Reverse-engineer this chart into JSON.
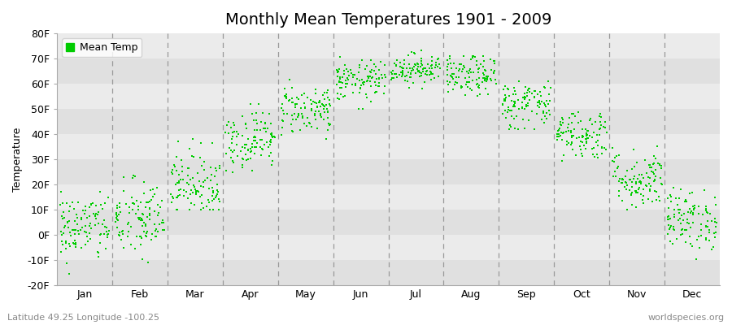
{
  "title": "Monthly Mean Temperatures 1901 - 2009",
  "ylabel": "Temperature",
  "xlabel_bottom_left": "Latitude 49.25 Longitude -100.25",
  "xlabel_bottom_right": "worldspecies.org",
  "legend_label": "Mean Temp",
  "dot_color": "#00CC00",
  "dot_size": 3,
  "ylim": [
    -20,
    80
  ],
  "yticks": [
    -20,
    -10,
    0,
    10,
    20,
    30,
    40,
    50,
    60,
    70,
    80
  ],
  "ytick_labels": [
    "-20F",
    "-10F",
    "0F",
    "10F",
    "20F",
    "30F",
    "40F",
    "50F",
    "60F",
    "70F",
    "80F"
  ],
  "months": [
    "Jan",
    "Feb",
    "Mar",
    "Apr",
    "May",
    "Jun",
    "Jul",
    "Aug",
    "Sep",
    "Oct",
    "Nov",
    "Dec"
  ],
  "bg_color": "#ffffff",
  "plot_bg_color": "#ebebeb",
  "band_colors": [
    "#e0e0e0",
    "#ebebeb"
  ],
  "title_fontsize": 14,
  "axis_fontsize": 9,
  "tick_fontsize": 9,
  "legend_fontsize": 9,
  "seed": 42,
  "monthly_mean_temps": {
    "Jan": {
      "mean": 3,
      "std": 7,
      "min": -17,
      "max": 17
    },
    "Feb": {
      "mean": 6,
      "std": 8,
      "min": -14,
      "max": 26
    },
    "Mar": {
      "mean": 20,
      "std": 7,
      "min": 10,
      "max": 38
    },
    "Apr": {
      "mean": 38,
      "std": 6,
      "min": 25,
      "max": 52
    },
    "May": {
      "mean": 50,
      "std": 5,
      "min": 38,
      "max": 62
    },
    "Jun": {
      "mean": 61,
      "std": 4,
      "min": 50,
      "max": 72
    },
    "Jul": {
      "mean": 66,
      "std": 3,
      "min": 58,
      "max": 74
    },
    "Aug": {
      "mean": 63,
      "std": 4,
      "min": 55,
      "max": 71
    },
    "Sep": {
      "mean": 52,
      "std": 5,
      "min": 42,
      "max": 63
    },
    "Oct": {
      "mean": 40,
      "std": 5,
      "min": 28,
      "max": 52
    },
    "Nov": {
      "mean": 22,
      "std": 6,
      "min": 10,
      "max": 38
    },
    "Dec": {
      "mean": 6,
      "std": 6,
      "min": -13,
      "max": 20
    }
  },
  "n_years": 109
}
